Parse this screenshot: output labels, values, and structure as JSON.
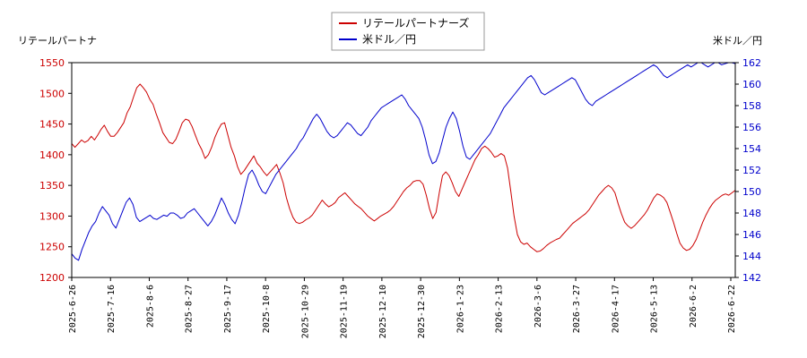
{
  "chart_data": {
    "type": "line",
    "left_axis_title": "リテールパートナ",
    "right_axis_title": "米ドル／円",
    "x_tick_labels": [
      "2025-6-26",
      "2025-7-16",
      "2025-8-6",
      "2025-8-27",
      "2025-9-17",
      "2025-10-8",
      "2025-10-29",
      "2025-11-19",
      "2025-12-10",
      "2025-12-30",
      "2026-1-23",
      "2026-2-13",
      "2026-3-6",
      "2026-3-27",
      "2026-4-17",
      "2026-5-13",
      "2026-6-2",
      "2026-6-22"
    ],
    "y_left": {
      "ticks": [
        1200,
        1250,
        1300,
        1350,
        1400,
        1450,
        1500,
        1550
      ],
      "min": 1200,
      "max": 1550
    },
    "y_right": {
      "ticks": [
        142,
        144,
        146,
        148,
        150,
        152,
        154,
        156,
        158,
        160,
        162
      ],
      "min": 142,
      "max": 162
    },
    "series": [
      {
        "name": "リテールパートナーズ",
        "color": "#cc0000",
        "axis": "left",
        "values": [
          1418,
          1412,
          1418,
          1424,
          1420,
          1423,
          1430,
          1424,
          1432,
          1441,
          1448,
          1438,
          1430,
          1430,
          1436,
          1444,
          1452,
          1468,
          1478,
          1494,
          1509,
          1515,
          1509,
          1502,
          1490,
          1482,
          1466,
          1452,
          1436,
          1428,
          1420,
          1418,
          1425,
          1438,
          1452,
          1458,
          1456,
          1446,
          1432,
          1418,
          1408,
          1394,
          1400,
          1412,
          1428,
          1440,
          1450,
          1452,
          1432,
          1412,
          1398,
          1380,
          1368,
          1374,
          1382,
          1390,
          1398,
          1386,
          1380,
          1372,
          1366,
          1372,
          1378,
          1384,
          1370,
          1354,
          1330,
          1312,
          1298,
          1290,
          1288,
          1290,
          1294,
          1297,
          1302,
          1310,
          1318,
          1326,
          1320,
          1315,
          1318,
          1322,
          1330,
          1334,
          1338,
          1332,
          1326,
          1320,
          1316,
          1312,
          1306,
          1300,
          1296,
          1292,
          1296,
          1300,
          1303,
          1306,
          1310,
          1316,
          1324,
          1332,
          1340,
          1346,
          1350,
          1356,
          1358,
          1358,
          1352,
          1334,
          1312,
          1296,
          1306,
          1338,
          1366,
          1372,
          1366,
          1354,
          1340,
          1332,
          1344,
          1356,
          1368,
          1380,
          1392,
          1400,
          1410,
          1414,
          1410,
          1404,
          1396,
          1398,
          1402,
          1398,
          1378,
          1340,
          1300,
          1270,
          1258,
          1254,
          1256,
          1250,
          1246,
          1242,
          1243,
          1247,
          1252,
          1256,
          1259,
          1262,
          1264,
          1270,
          1276,
          1282,
          1288,
          1292,
          1296,
          1300,
          1304,
          1310,
          1318,
          1326,
          1334,
          1340,
          1346,
          1350,
          1346,
          1338,
          1320,
          1304,
          1290,
          1284,
          1280,
          1284,
          1290,
          1296,
          1302,
          1310,
          1320,
          1330,
          1336,
          1334,
          1330,
          1322,
          1306,
          1290,
          1272,
          1256,
          1248,
          1244,
          1246,
          1252,
          1262,
          1276,
          1290,
          1302,
          1312,
          1320,
          1326,
          1330,
          1334,
          1336,
          1334,
          1338,
          1342
        ]
      },
      {
        "name": "米ドル／円",
        "color": "#0000cc",
        "axis": "right",
        "values": [
          144.2,
          143.8,
          143.6,
          144.6,
          145.4,
          146.2,
          146.8,
          147.2,
          148.0,
          148.6,
          148.2,
          147.8,
          147.0,
          146.6,
          147.4,
          148.2,
          149.0,
          149.4,
          148.8,
          147.6,
          147.2,
          147.4,
          147.6,
          147.8,
          147.5,
          147.4,
          147.6,
          147.8,
          147.7,
          148.0,
          148.0,
          147.8,
          147.5,
          147.6,
          148.0,
          148.2,
          148.4,
          148.0,
          147.6,
          147.2,
          146.8,
          147.2,
          147.8,
          148.6,
          149.4,
          148.8,
          148.0,
          147.4,
          147.0,
          147.8,
          149.0,
          150.4,
          151.6,
          152.0,
          151.4,
          150.6,
          150.0,
          149.8,
          150.4,
          151.0,
          151.6,
          152.0,
          152.4,
          152.8,
          153.2,
          153.6,
          154.0,
          154.6,
          155.0,
          155.6,
          156.2,
          156.8,
          157.2,
          156.8,
          156.2,
          155.6,
          155.2,
          155.0,
          155.2,
          155.6,
          156.0,
          156.4,
          156.2,
          155.8,
          155.4,
          155.2,
          155.6,
          156.0,
          156.6,
          157.0,
          157.4,
          157.8,
          158.0,
          158.2,
          158.4,
          158.6,
          158.8,
          159.0,
          158.6,
          158.0,
          157.6,
          157.2,
          156.8,
          156.0,
          154.8,
          153.4,
          152.6,
          152.8,
          153.6,
          154.8,
          156.0,
          156.8,
          157.4,
          156.8,
          155.6,
          154.2,
          153.2,
          153.0,
          153.4,
          153.8,
          154.2,
          154.6,
          155.0,
          155.4,
          156.0,
          156.6,
          157.2,
          157.8,
          158.2,
          158.6,
          159.0,
          159.4,
          159.8,
          160.2,
          160.6,
          160.8,
          160.4,
          159.8,
          159.2,
          159.0,
          159.2,
          159.4,
          159.6,
          159.8,
          160.0,
          160.2,
          160.4,
          160.6,
          160.4,
          159.8,
          159.2,
          158.6,
          158.2,
          158.0,
          158.4,
          158.6,
          158.8,
          159.0,
          159.2,
          159.4,
          159.6,
          159.8,
          160.0,
          160.2,
          160.4,
          160.6,
          160.8,
          161.0,
          161.2,
          161.4,
          161.6,
          161.8,
          161.6,
          161.2,
          160.8,
          160.6,
          160.8,
          161.0,
          161.2,
          161.4,
          161.6,
          161.8,
          161.6,
          161.8,
          162.0,
          162.0,
          161.8,
          161.6,
          161.8,
          162.0,
          162.0,
          161.8,
          161.9,
          162.0,
          162.0,
          161.9
        ]
      }
    ],
    "legend_position": "top-center",
    "grid": false
  }
}
